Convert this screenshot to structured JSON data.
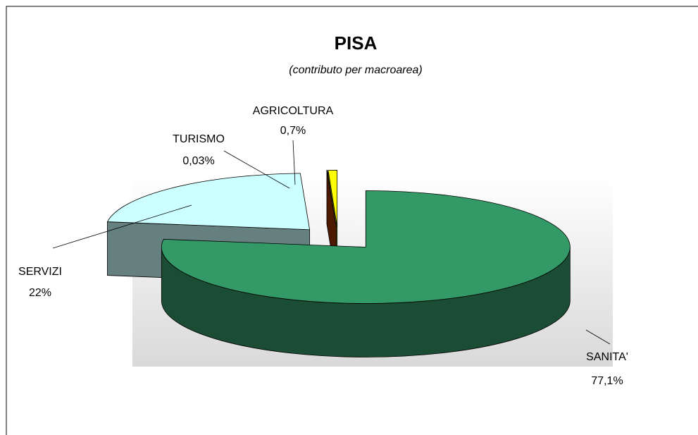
{
  "chart_data": {
    "type": "pie3d",
    "title": "PISA",
    "subtitle": "(contributo per macroarea)",
    "categories": [
      "SANITA'",
      "SERVIZI",
      "TURISMO",
      "AGRICOLTURA"
    ],
    "values": [
      77.1,
      22,
      0.03,
      0.7
    ],
    "value_labels": [
      "77,1%",
      "22%",
      "0,03%",
      "0,7%"
    ],
    "colors": [
      "#339966",
      "#ccffff",
      "#993300",
      "#ffff00"
    ]
  }
}
